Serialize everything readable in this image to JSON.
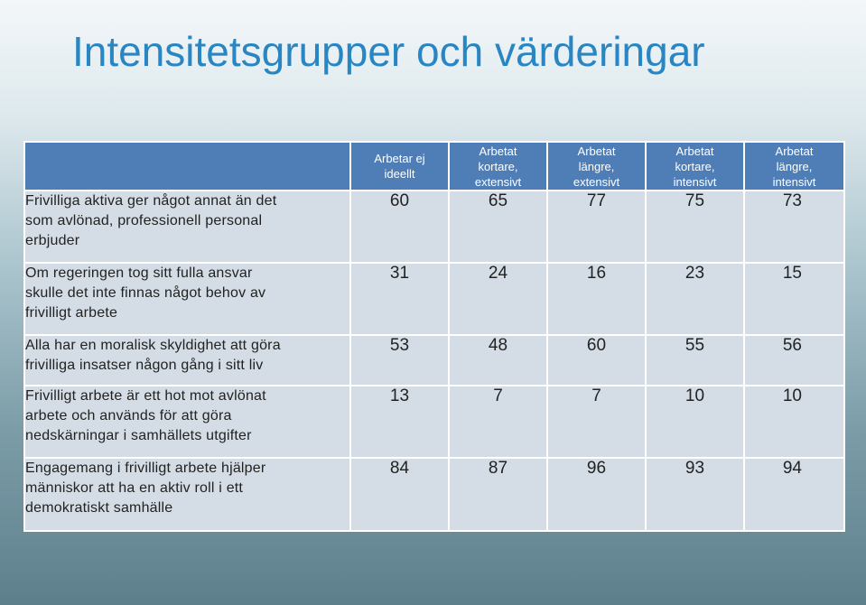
{
  "title": "Intensitetsgrupper och värderingar",
  "header": {
    "corner": "",
    "columns": [
      [
        "Arbetar ej",
        "ideellt"
      ],
      [
        "Arbetat",
        "kortare,",
        "extensivt"
      ],
      [
        "Arbetat",
        "längre,",
        "extensivt"
      ],
      [
        "Arbetat",
        "kortare,",
        "intensivt"
      ],
      [
        "Arbetat",
        "längre,",
        "intensivt"
      ]
    ]
  },
  "rows": [
    {
      "label": [
        "Frivilliga aktiva ger något annat än det",
        "som avlönad, professionell personal",
        "erbjuder"
      ],
      "values": [
        "60",
        "65",
        "77",
        "75",
        "73"
      ]
    },
    {
      "label": [
        "Om regeringen tog sitt fulla ansvar",
        "skulle det inte finnas något behov av",
        "frivilligt arbete"
      ],
      "values": [
        "31",
        "24",
        "16",
        "23",
        "15"
      ]
    },
    {
      "label": [
        "Alla har en moralisk skyldighet att göra",
        "frivilliga insatser någon gång i sitt liv"
      ],
      "values": [
        "53",
        "48",
        "60",
        "55",
        "56"
      ]
    },
    {
      "label": [
        "Frivilligt arbete är ett hot mot avlönat",
        "arbete och används för att göra",
        "nedskärningar i samhällets utgifter"
      ],
      "values": [
        "13",
        "7",
        "7",
        "10",
        "10"
      ]
    },
    {
      "label": [
        "Engagemang i frivilligt arbete hjälper",
        "människor att ha en aktiv roll i ett",
        "demokratiskt samhälle"
      ],
      "values": [
        "84",
        "87",
        "96",
        "93",
        "94"
      ]
    }
  ],
  "colors": {
    "title": "#2a86c2",
    "header_bg": "#4f7eb6",
    "cell_bg": "#d4dde5",
    "grid_lines": "#ffffff"
  }
}
